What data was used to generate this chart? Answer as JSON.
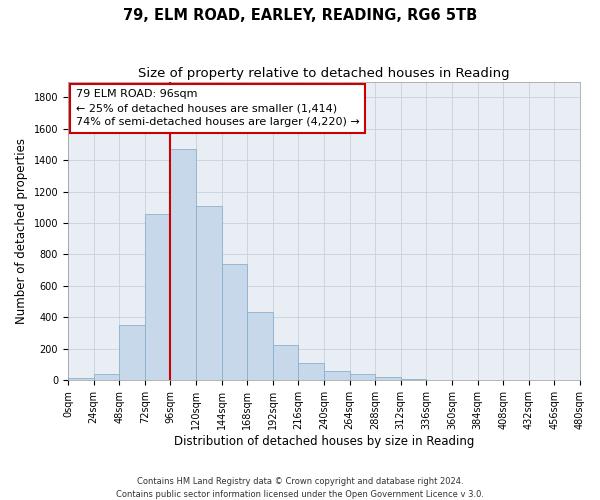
{
  "title": "79, ELM ROAD, EARLEY, READING, RG6 5TB",
  "subtitle": "Size of property relative to detached houses in Reading",
  "xlabel": "Distribution of detached houses by size in Reading",
  "ylabel": "Number of detached properties",
  "bar_color": "#c8d8eb",
  "bar_edge_color": "#8ab0cc",
  "bar_left_edges": [
    0,
    24,
    48,
    72,
    96,
    120,
    144,
    168,
    192,
    216,
    240,
    264,
    288,
    312,
    336,
    360,
    384,
    408,
    432,
    456
  ],
  "bar_heights": [
    15,
    35,
    350,
    1060,
    1470,
    1110,
    740,
    435,
    225,
    110,
    55,
    40,
    18,
    5,
    2,
    1,
    0,
    0,
    0,
    0
  ],
  "bin_width": 24,
  "x_ticks": [
    0,
    24,
    48,
    72,
    96,
    120,
    144,
    168,
    192,
    216,
    240,
    264,
    288,
    312,
    336,
    360,
    384,
    408,
    432,
    456,
    480
  ],
  "x_tick_labels": [
    "0sqm",
    "24sqm",
    "48sqm",
    "72sqm",
    "96sqm",
    "120sqm",
    "144sqm",
    "168sqm",
    "192sqm",
    "216sqm",
    "240sqm",
    "264sqm",
    "288sqm",
    "312sqm",
    "336sqm",
    "360sqm",
    "384sqm",
    "408sqm",
    "432sqm",
    "456sqm",
    "480sqm"
  ],
  "y_ticks": [
    0,
    200,
    400,
    600,
    800,
    1000,
    1200,
    1400,
    1600,
    1800
  ],
  "ylim": [
    0,
    1900
  ],
  "xlim": [
    0,
    480
  ],
  "vline_x": 96,
  "vline_color": "#cc0000",
  "annotation_line1": "79 ELM ROAD: 96sqm",
  "annotation_line2": "← 25% of detached houses are smaller (1,414)",
  "annotation_line3": "74% of semi-detached houses are larger (4,220) →",
  "grid_color": "#c0ccd8",
  "background_color": "#e8eef4",
  "footer_line1": "Contains HM Land Registry data © Crown copyright and database right 2024.",
  "footer_line2": "Contains public sector information licensed under the Open Government Licence v 3.0.",
  "title_fontsize": 10.5,
  "subtitle_fontsize": 9.5,
  "axis_label_fontsize": 8.5,
  "tick_fontsize": 7,
  "annotation_fontsize": 8,
  "footer_fontsize": 6
}
